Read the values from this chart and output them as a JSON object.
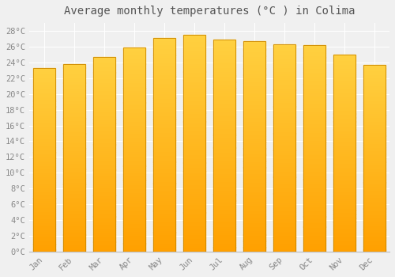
{
  "months": [
    "Jan",
    "Feb",
    "Mar",
    "Apr",
    "May",
    "Jun",
    "Jul",
    "Aug",
    "Sep",
    "Oct",
    "Nov",
    "Dec"
  ],
  "values": [
    23.3,
    23.8,
    24.7,
    25.9,
    27.1,
    27.5,
    26.9,
    26.7,
    26.3,
    26.2,
    25.0,
    23.7
  ],
  "bar_color_top": "#FFD040",
  "bar_color_bottom": "#FFA000",
  "bar_edge_color": "#CC8800",
  "title": "Average monthly temperatures (°C ) in Colima",
  "title_fontsize": 10,
  "ylim": [
    0,
    29
  ],
  "ytick_step": 2,
  "background_color": "#f0f0f0",
  "plot_bg_color": "#f0f0f0",
  "grid_color": "#ffffff",
  "tick_label_color": "#888888",
  "tick_label_fontsize": 7.5
}
